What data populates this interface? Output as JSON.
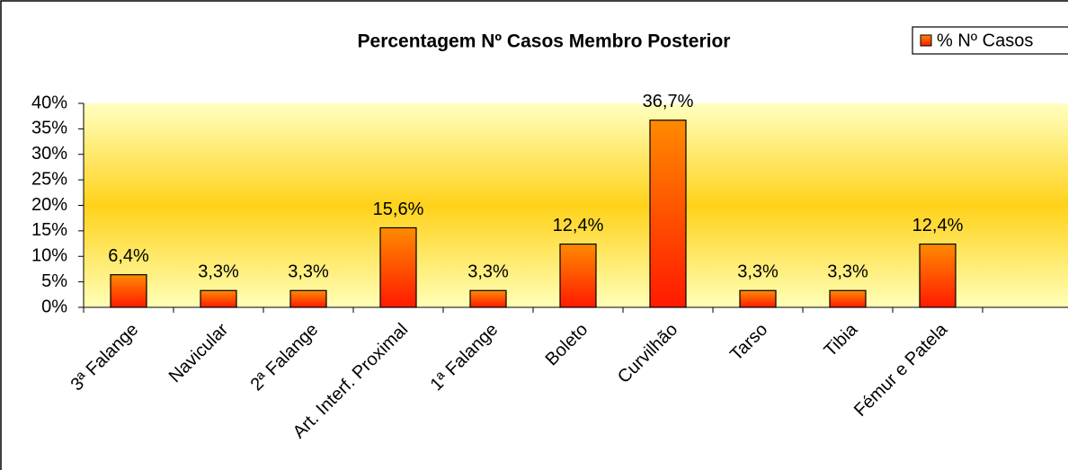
{
  "chart_data": {
    "type": "bar",
    "title": "Percentagem Nº Casos Membro Posterior",
    "categories": [
      "3ª Falange",
      "Navicular",
      "2ª Falange",
      "Art. Interf. Proximal",
      "1ª Falange",
      "Boleto",
      "Curvilhão",
      "Tarso",
      "Tibia",
      "Fémur e Patela"
    ],
    "series": [
      {
        "name": "% Nº Casos",
        "color": "#ff4a00",
        "values": [
          6.4,
          3.3,
          3.3,
          15.6,
          3.3,
          12.4,
          36.7,
          3.3,
          3.3,
          12.4
        ],
        "value_labels": [
          "6,4%",
          "3,3%",
          "3,3%",
          "15,6%",
          "3,3%",
          "12,4%",
          "36,7%",
          "3,3%",
          "3,3%",
          "12,4%"
        ]
      }
    ],
    "ylim": [
      0,
      40
    ],
    "yticks": [
      {
        "value": 0,
        "label": "0%"
      },
      {
        "value": 5,
        "label": "5%"
      },
      {
        "value": 10,
        "label": "10%"
      },
      {
        "value": 15,
        "label": "15%"
      },
      {
        "value": 20,
        "label": "20%"
      },
      {
        "value": 25,
        "label": "25%"
      },
      {
        "value": 30,
        "label": "30%"
      },
      {
        "value": 35,
        "label": "35%"
      },
      {
        "value": 40,
        "label": "40%"
      }
    ],
    "legend": "top-right"
  }
}
